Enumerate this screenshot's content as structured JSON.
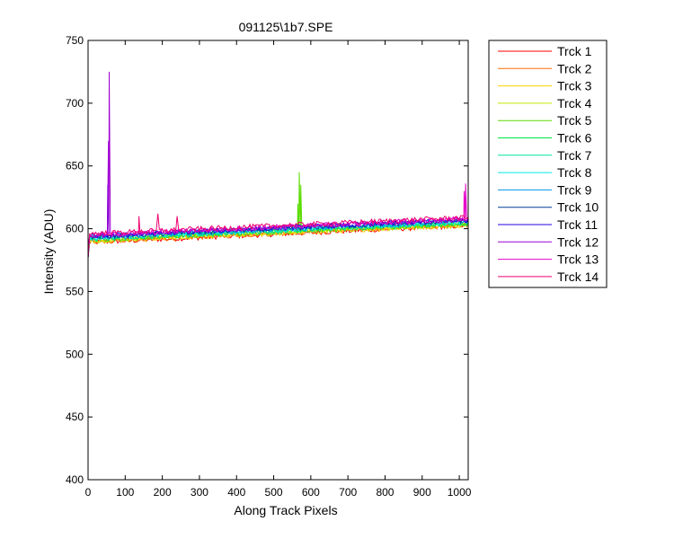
{
  "chart_data": {
    "type": "line",
    "title": "091125\\1b7.SPE",
    "xlabel": "Along Track Pixels",
    "ylabel": "Intensity (ADU)",
    "xlim": [
      0,
      1024
    ],
    "ylim": [
      400,
      750
    ],
    "xticks": [
      0,
      100,
      200,
      300,
      400,
      500,
      600,
      700,
      800,
      900,
      1000
    ],
    "yticks": [
      400,
      450,
      500,
      550,
      600,
      650,
      700,
      750
    ],
    "grid": false,
    "legend_position": "outside-right",
    "x_step": 4,
    "series": [
      {
        "name": "Trck 1",
        "color": "#ff0000",
        "start": 589.0,
        "end": 602.5,
        "noise": 2.0
      },
      {
        "name": "Trck 2",
        "color": "#ff6a00",
        "start": 589.5,
        "end": 603.0,
        "noise": 2.0
      },
      {
        "name": "Trck 3",
        "color": "#ffd200",
        "start": 590.0,
        "end": 603.0,
        "noise": 2.0
      },
      {
        "name": "Trck 4",
        "color": "#c8e600",
        "start": 590.5,
        "end": 603.5,
        "noise": 2.0
      },
      {
        "name": "Trck 5",
        "color": "#5adc00",
        "start": 591.0,
        "end": 604.0,
        "noise": 2.0,
        "spikes": [
          [
            565,
            620
          ],
          [
            569,
            645
          ],
          [
            573,
            635
          ]
        ]
      },
      {
        "name": "Trck 6",
        "color": "#00e646",
        "start": 591.5,
        "end": 604.5,
        "noise": 2.0
      },
      {
        "name": "Trck 7",
        "color": "#00e6a0",
        "start": 592.0,
        "end": 605.0,
        "noise": 2.0
      },
      {
        "name": "Trck 8",
        "color": "#00e6e6",
        "start": 592.5,
        "end": 605.5,
        "noise": 2.0
      },
      {
        "name": "Trck 9",
        "color": "#0096e6",
        "start": 593.0,
        "end": 606.0,
        "noise": 2.0
      },
      {
        "name": "Trck 10",
        "color": "#003c96",
        "start": 593.5,
        "end": 606.5,
        "noise": 2.0
      },
      {
        "name": "Trck 11",
        "color": "#2800e6",
        "start": 594.0,
        "end": 607.0,
        "noise": 2.0,
        "spikes": [
          [
            53,
            635
          ]
        ]
      },
      {
        "name": "Trck 12",
        "color": "#a000d2",
        "start": 594.5,
        "end": 607.5,
        "noise": 2.0,
        "spikes": [
          [
            55,
            670
          ],
          [
            57,
            725
          ]
        ]
      },
      {
        "name": "Trck 13",
        "color": "#e600c8",
        "start": 595.0,
        "end": 608.0,
        "noise": 2.0,
        "spikes": [
          [
            1013,
            630
          ],
          [
            1017,
            636
          ]
        ]
      },
      {
        "name": "Trck 14",
        "color": "#f0006e",
        "start": 596.0,
        "end": 609.0,
        "noise": 2.0,
        "spikes": [
          [
            137,
            610
          ],
          [
            188,
            612
          ],
          [
            240,
            610
          ]
        ]
      }
    ]
  }
}
